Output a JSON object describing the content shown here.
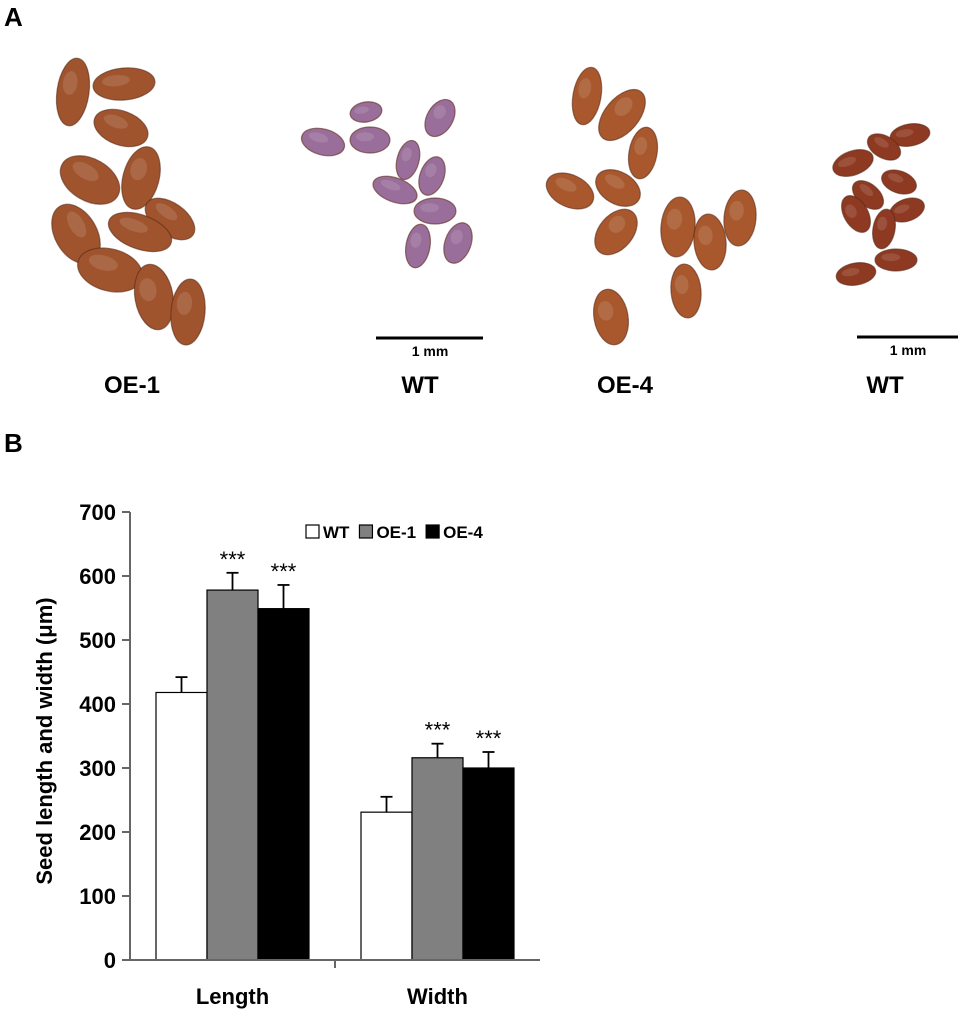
{
  "panel_a": {
    "letter": "A",
    "labels": [
      "OE-1",
      "WT",
      "OE-4",
      "WT"
    ],
    "scale_bars": [
      "1 mm",
      "1 mm"
    ],
    "seed_colors": [
      "#a0542e",
      "#9a6e9a",
      "#a8582c",
      "#8e3a22"
    ]
  },
  "panel_b": {
    "letter": "B"
  },
  "chart_data": {
    "type": "bar",
    "title": "",
    "ylabel": "Seed length and width (μm)",
    "xlabel": "",
    "categories": [
      "Length",
      "Width"
    ],
    "ylim": [
      0,
      700
    ],
    "yticks": [
      0,
      100,
      200,
      300,
      400,
      500,
      600,
      700
    ],
    "series": [
      {
        "name": "WT",
        "values": [
          418,
          231
        ],
        "errors": [
          24,
          24
        ],
        "color": "#ffffff",
        "annotations": [
          "",
          ""
        ]
      },
      {
        "name": "OE-1",
        "values": [
          578,
          316
        ],
        "errors": [
          27,
          22
        ],
        "color": "#808080",
        "annotations": [
          "***",
          "***"
        ]
      },
      {
        "name": "OE-4",
        "values": [
          549,
          300
        ],
        "errors": [
          37,
          25
        ],
        "color": "#000000",
        "annotations": [
          "***",
          "***"
        ]
      }
    ],
    "legend_position": "top-center",
    "grid": false
  }
}
